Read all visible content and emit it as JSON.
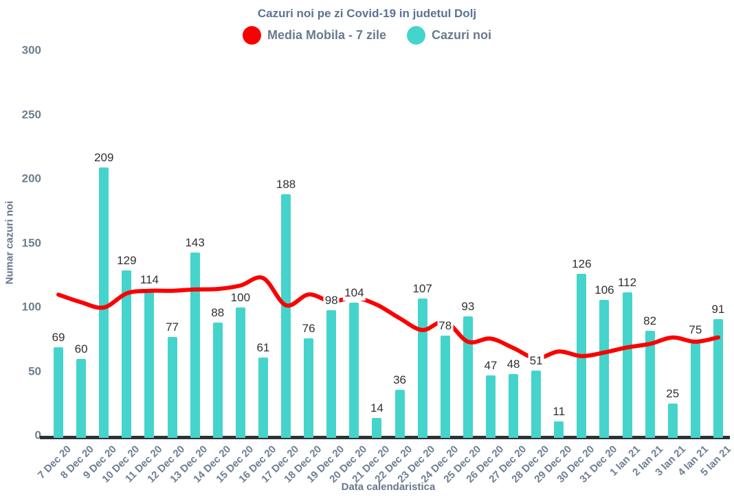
{
  "title": "Cazuri noi pe zi Covid-19 in judetul Dolj",
  "legend": [
    {
      "label": "Media Mobila - 7 zile",
      "color": "#fb0000"
    },
    {
      "label": "Cazuri noi",
      "color": "#45d4cb"
    }
  ],
  "axes": {
    "y_title": "Numar cazuri noi",
    "x_title": "Data calendaristica"
  },
  "chart_data": {
    "type": "bar",
    "title": "Cazuri noi pe zi Covid-19 in judetul Dolj",
    "categories": [
      "7 Dec 20",
      "8 Dec 20",
      "9 Dec 20",
      "10 Dec 20",
      "11 Dec 20",
      "12 Dec 20",
      "13 Dec 20",
      "14 Dec 20",
      "15 Dec 20",
      "16 Dec 20",
      "17 Dec 20",
      "18 Dec 20",
      "19 Dec 20",
      "20 Dec 20",
      "21 Dec 20",
      "22 Dec 20",
      "23 Dec 20",
      "24 Dec 20",
      "25 Dec 20",
      "26 Dec 20",
      "27 Dec 20",
      "28 Dec 20",
      "29 Dec 20",
      "30 Dec 20",
      "31 Dec 20",
      "1 Ian 21",
      "2 Ian 21",
      "3 Ian 21",
      "4 Ian 21",
      "5 Ian 21"
    ],
    "series": [
      {
        "name": "Cazuri noi",
        "type": "bar",
        "color": "#45d4cb",
        "values": [
          69,
          60,
          209,
          129,
          114,
          77,
          143,
          88,
          100,
          61,
          188,
          76,
          98,
          104,
          14,
          36,
          107,
          78,
          93,
          47,
          48,
          51,
          11,
          126,
          106,
          112,
          82,
          25,
          75,
          91
        ]
      },
      {
        "name": "Media Mobila - 7 zile",
        "type": "line",
        "color": "#fb0000",
        "values": [
          110,
          104,
          100,
          111,
          113,
          113,
          114,
          114.4,
          117.1,
          122.9,
          101.7,
          110.1,
          104.7,
          107.7,
          102.1,
          91.6,
          82.4,
          89,
          73.3,
          75.7,
          68.4,
          60.4,
          65.7,
          62.1,
          64.9,
          68.9,
          71.6,
          76.6,
          73.3,
          76.7
        ]
      }
    ],
    "xlabel": "Data calendaristica",
    "ylabel": "Numar cazuri noi",
    "ylim": [
      0,
      300
    ],
    "yticks": [
      0,
      50,
      100,
      150,
      200,
      250,
      300
    ],
    "grid": false,
    "legend_position": "top",
    "bar_value_labels": true
  }
}
